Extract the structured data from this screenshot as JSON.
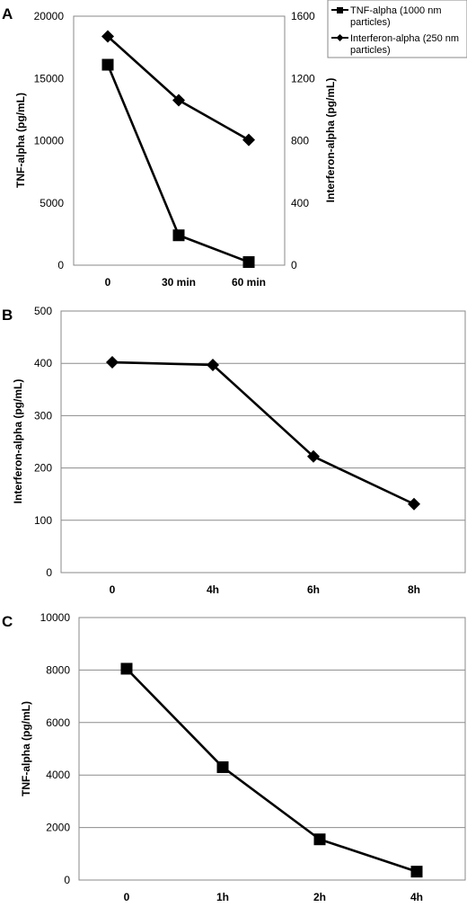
{
  "chart_data": [
    {
      "panel_label": "A",
      "type": "line",
      "categories": [
        "0",
        "30 min",
        "60 min"
      ],
      "series": [
        {
          "name": "TNF-alpha (1000 nm particles)",
          "axis": "left",
          "marker": "square",
          "values": [
            16100,
            2400,
            250
          ]
        },
        {
          "name": "Interferon-alpha (250 nm particles)",
          "axis": "right",
          "marker": "diamond",
          "values": [
            1470,
            1060,
            805
          ]
        }
      ],
      "ylabel": "TNF-alpha (pg/mL)",
      "ylim": [
        0,
        20000
      ],
      "yticks": [
        "0",
        "5000",
        "10000",
        "15000",
        "20000"
      ],
      "y2label": "Interferon-alpha (pg/mL)",
      "y2lim": [
        0,
        1600
      ],
      "y2ticks": [
        "0",
        "400",
        "800",
        "1200",
        "1600"
      ],
      "legend": {
        "placement": "top-right",
        "entries": [
          {
            "marker": "square",
            "line1": "TNF-alpha (1000 nm",
            "line2": "particles)"
          },
          {
            "marker": "diamond",
            "line1": "Interferon-alpha (250 nm",
            "line2": "particles)"
          }
        ]
      },
      "grid": false
    },
    {
      "panel_label": "B",
      "type": "line",
      "categories": [
        "0",
        "4h",
        "6h",
        "8h"
      ],
      "series": [
        {
          "name": "Interferon-alpha",
          "marker": "diamond",
          "values": [
            402,
            397,
            222,
            131
          ]
        }
      ],
      "ylabel": "Interferon-alpha (pg/mL)",
      "ylim": [
        0,
        500
      ],
      "yticks": [
        "0",
        "100",
        "200",
        "300",
        "400",
        "500"
      ],
      "grid": true
    },
    {
      "panel_label": "C",
      "type": "line",
      "categories": [
        "0",
        "1h",
        "2h",
        "4h"
      ],
      "series": [
        {
          "name": "TNF-alpha",
          "marker": "square",
          "values": [
            8050,
            4300,
            1550,
            320
          ]
        }
      ],
      "ylabel": "TNF-alpha (pg/mL)",
      "ylim": [
        0,
        10000
      ],
      "yticks": [
        "0",
        "2000",
        "4000",
        "6000",
        "8000",
        "10000"
      ],
      "grid": true
    }
  ]
}
